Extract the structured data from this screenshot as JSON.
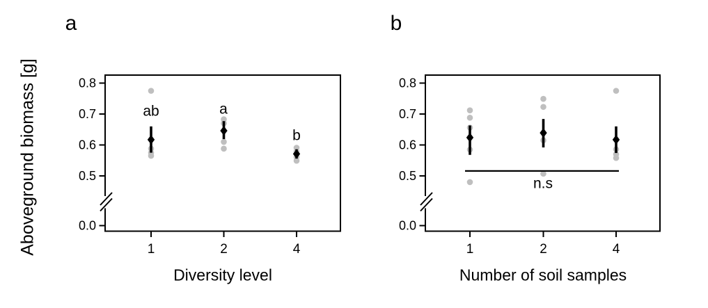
{
  "figure": {
    "background_color": "#ffffff",
    "ink_color": "#000000"
  },
  "chart_data": [
    {
      "type": "scatter",
      "panel": "a",
      "title": "",
      "xlabel": "Diversity level",
      "ylabel": "Aboveground biomass [g]",
      "x_tick_labels": [
        "1",
        "2",
        "4"
      ],
      "y_tick_labels": [
        "0.0",
        "0.5",
        "0.6",
        "0.7",
        "0.8"
      ],
      "y_tick_values": [
        0.0,
        0.5,
        0.6,
        0.7,
        0.8
      ],
      "axis_break_between": [
        0.0,
        0.5
      ],
      "grid": false,
      "point_color_raw": "#bfbfbf",
      "point_color_mean": "#000000",
      "groups": [
        {
          "category": "1",
          "raw_values": [
            0.775,
            0.588,
            0.575,
            0.565
          ],
          "mean": 0.617,
          "ci_low": 0.575,
          "ci_high": 0.66,
          "sig_letter": "ab",
          "sig_letter_y": 0.71
        },
        {
          "category": "2",
          "raw_values": [
            0.683,
            0.67,
            0.61,
            0.588
          ],
          "mean": 0.646,
          "ci_low": 0.619,
          "ci_high": 0.677,
          "sig_letter": "a",
          "sig_letter_y": 0.715
        },
        {
          "category": "4",
          "raw_values": [
            0.591,
            0.579,
            0.561,
            0.549
          ],
          "mean": 0.571,
          "ci_low": 0.556,
          "ci_high": 0.586,
          "sig_letter": "b",
          "sig_letter_y": 0.63
        }
      ]
    },
    {
      "type": "scatter",
      "panel": "b",
      "title": "",
      "xlabel": "Number of soil samples",
      "ylabel": "Aboveground biomass [g]",
      "x_tick_labels": [
        "1",
        "2",
        "4"
      ],
      "y_tick_labels": [
        "0.0",
        "0.5",
        "0.6",
        "0.7",
        "0.8"
      ],
      "y_tick_values": [
        0.0,
        0.5,
        0.6,
        0.7,
        0.8
      ],
      "axis_break_between": [
        0.0,
        0.5
      ],
      "grid": false,
      "point_color_raw": "#bfbfbf",
      "point_color_mean": "#000000",
      "groups": [
        {
          "category": "1",
          "raw_values": [
            0.712,
            0.688,
            0.656,
            0.585,
            0.48
          ],
          "mean": 0.624,
          "ci_low": 0.568,
          "ci_high": 0.663
        },
        {
          "category": "2",
          "raw_values": [
            0.749,
            0.723,
            0.615,
            0.507
          ],
          "mean": 0.639,
          "ci_low": 0.592,
          "ci_high": 0.684
        },
        {
          "category": "4",
          "raw_values": [
            0.775,
            0.586,
            0.57,
            0.558
          ],
          "mean": 0.617,
          "ci_low": 0.574,
          "ci_high": 0.66
        }
      ],
      "ns_annotation": {
        "label": "n.s",
        "line_y": 0.516,
        "from_category": "1",
        "to_category": "4"
      }
    }
  ]
}
